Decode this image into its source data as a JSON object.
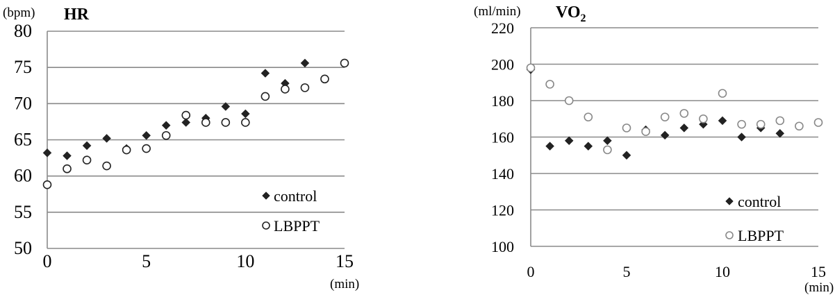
{
  "chart_data": [
    {
      "type": "scatter",
      "title": "HR",
      "ylabel_unit": "(bpm)",
      "xlabel_unit": "(min)",
      "xlim": [
        0,
        15
      ],
      "ylim": [
        50,
        80
      ],
      "x_ticks": [
        "0",
        "5",
        "10",
        "15"
      ],
      "y_ticks": [
        "50",
        "55",
        "60",
        "65",
        "70",
        "75",
        "80"
      ],
      "grid": true,
      "legend_position": "bottom-right",
      "series": [
        {
          "name": "control",
          "marker": "filled-diamond",
          "color": "#222222",
          "points": [
            [
              0,
              63.2
            ],
            [
              1,
              62.8
            ],
            [
              2,
              64.2
            ],
            [
              3,
              65.2
            ],
            [
              4,
              63.8
            ],
            [
              5,
              65.6
            ],
            [
              6,
              67.0
            ],
            [
              7,
              67.4
            ],
            [
              8,
              68.0
            ],
            [
              9,
              69.6
            ],
            [
              10,
              68.6
            ],
            [
              11,
              74.2
            ],
            [
              12,
              72.8
            ],
            [
              13,
              75.6
            ]
          ]
        },
        {
          "name": "LBPPT",
          "marker": "open-circle",
          "color": "#222222",
          "points": [
            [
              0,
              58.8
            ],
            [
              1,
              61.0
            ],
            [
              2,
              62.2
            ],
            [
              3,
              61.4
            ],
            [
              4,
              63.6
            ],
            [
              5,
              63.8
            ],
            [
              6,
              65.6
            ],
            [
              7,
              68.4
            ],
            [
              8,
              67.4
            ],
            [
              9,
              67.4
            ],
            [
              10,
              67.4
            ],
            [
              11,
              71.0
            ],
            [
              12,
              72.0
            ],
            [
              13,
              72.2
            ],
            [
              14,
              73.4
            ],
            [
              15,
              75.6
            ]
          ]
        }
      ]
    },
    {
      "type": "scatter",
      "title": "VO2",
      "title_main": "VO",
      "title_sub": "2",
      "ylabel_unit": "(ml/min)",
      "xlabel_unit": "(min)",
      "xlim": [
        0,
        15
      ],
      "ylim": [
        100,
        220
      ],
      "x_ticks": [
        "0",
        "5",
        "10",
        "15"
      ],
      "y_ticks": [
        "100",
        "120",
        "140",
        "160",
        "180",
        "200",
        "220"
      ],
      "grid": true,
      "legend_position": "bottom-right",
      "series": [
        {
          "name": "control",
          "marker": "filled-diamond",
          "color": "#222222",
          "points": [
            [
              0,
              197
            ],
            [
              1,
              155
            ],
            [
              2,
              158
            ],
            [
              3,
              155
            ],
            [
              4,
              158
            ],
            [
              5,
              150
            ],
            [
              6,
              164
            ],
            [
              7,
              161
            ],
            [
              8,
              165
            ],
            [
              9,
              167
            ],
            [
              10,
              169
            ],
            [
              11,
              160
            ],
            [
              12,
              165
            ],
            [
              13,
              162
            ]
          ]
        },
        {
          "name": "LBPPT",
          "marker": "open-circle",
          "color": "#888888",
          "points": [
            [
              0,
              198
            ],
            [
              1,
              189
            ],
            [
              2,
              180
            ],
            [
              3,
              171
            ],
            [
              4,
              153
            ],
            [
              5,
              165
            ],
            [
              6,
              163
            ],
            [
              7,
              171
            ],
            [
              8,
              173
            ],
            [
              9,
              170
            ],
            [
              10,
              184
            ],
            [
              11,
              167
            ],
            [
              12,
              167
            ],
            [
              13,
              169
            ],
            [
              14,
              166
            ],
            [
              15,
              168
            ]
          ]
        }
      ]
    }
  ]
}
